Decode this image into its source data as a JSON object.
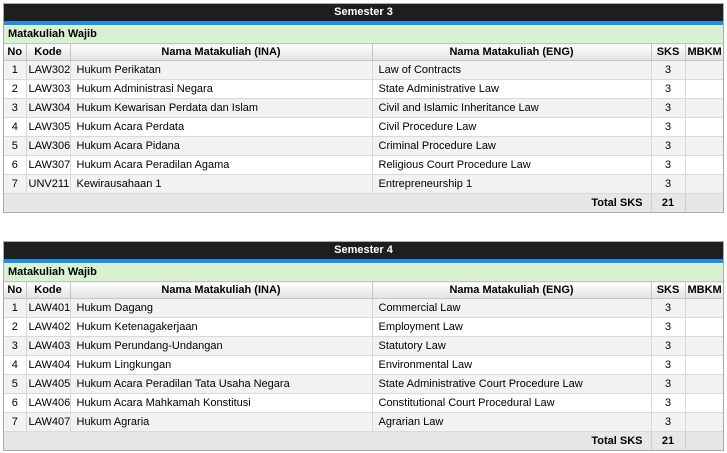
{
  "columns": {
    "no": "No",
    "kode": "Kode",
    "ina": "Nama Matakuliah (INA)",
    "eng": "Nama Matakuliah (ENG)",
    "sks": "SKS",
    "mbkm": "MBKM"
  },
  "colors": {
    "title_bar_bg": "#1e1e1e",
    "title_bar_text": "#ffffff",
    "accent_stripe_blue": "#1e8fe6",
    "section_green_bg": "#d8f1d1",
    "alt_row_bg": "#f2f2f2",
    "total_row_bg": "#e7e7e7",
    "border_gray": "#d9d9d9"
  },
  "tables": [
    {
      "title": "Semester 3",
      "section": "Matakuliah Wajib",
      "total_label": "Total SKS",
      "total_sks": "21",
      "rows": [
        {
          "no": "1",
          "code": "LAW302",
          "ina": "Hukum Perikatan",
          "eng": "Law of Contracts",
          "sks": "3",
          "mbkm": ""
        },
        {
          "no": "2",
          "code": "LAW303",
          "ina": "Hukum Administrasi Negara",
          "eng": "State Administrative Law",
          "sks": "3",
          "mbkm": ""
        },
        {
          "no": "3",
          "code": "LAW304",
          "ina": "Hukum Kewarisan Perdata dan Islam",
          "eng": "Civil and Islamic Inheritance Law",
          "sks": "3",
          "mbkm": ""
        },
        {
          "no": "4",
          "code": "LAW305",
          "ina": "Hukum Acara Perdata",
          "eng": "Civil Procedure Law",
          "sks": "3",
          "mbkm": ""
        },
        {
          "no": "5",
          "code": "LAW306",
          "ina": "Hukum Acara Pidana",
          "eng": "Criminal Procedure Law",
          "sks": "3",
          "mbkm": ""
        },
        {
          "no": "6",
          "code": "LAW307",
          "ina": "Hukum Acara Peradilan Agama",
          "eng": "Religious Court Procedure Law",
          "sks": "3",
          "mbkm": ""
        },
        {
          "no": "7",
          "code": "UNV211",
          "ina": "Kewirausahaan 1",
          "eng": "Entrepreneurship 1",
          "sks": "3",
          "mbkm": ""
        }
      ]
    },
    {
      "title": "Semester 4",
      "section": "Matakuliah Wajib",
      "total_label": "Total SKS",
      "total_sks": "21",
      "rows": [
        {
          "no": "1",
          "code": "LAW401",
          "ina": "Hukum Dagang",
          "eng": "Commercial Law",
          "sks": "3",
          "mbkm": ""
        },
        {
          "no": "2",
          "code": "LAW402",
          "ina": "Hukum Ketenagakerjaan",
          "eng": "Employment Law",
          "sks": "3",
          "mbkm": ""
        },
        {
          "no": "3",
          "code": "LAW403",
          "ina": "Hukum Perundang-Undangan",
          "eng": "Statutory Law",
          "sks": "3",
          "mbkm": ""
        },
        {
          "no": "4",
          "code": "LAW404",
          "ina": "Hukum Lingkungan",
          "eng": "Environmental Law",
          "sks": "3",
          "mbkm": ""
        },
        {
          "no": "5",
          "code": "LAW405",
          "ina": "Hukum Acara Peradilan Tata Usaha Negara",
          "eng": "State Administrative Court Procedure Law",
          "sks": "3",
          "mbkm": ""
        },
        {
          "no": "6",
          "code": "LAW406",
          "ina": "Hukum Acara Mahkamah Konstitusi",
          "eng": "Constitutional Court Procedural Law",
          "sks": "3",
          "mbkm": ""
        },
        {
          "no": "7",
          "code": "LAW407",
          "ina": "Hukum Agraria",
          "eng": "Agrarian Law",
          "sks": "3",
          "mbkm": ""
        }
      ]
    }
  ]
}
